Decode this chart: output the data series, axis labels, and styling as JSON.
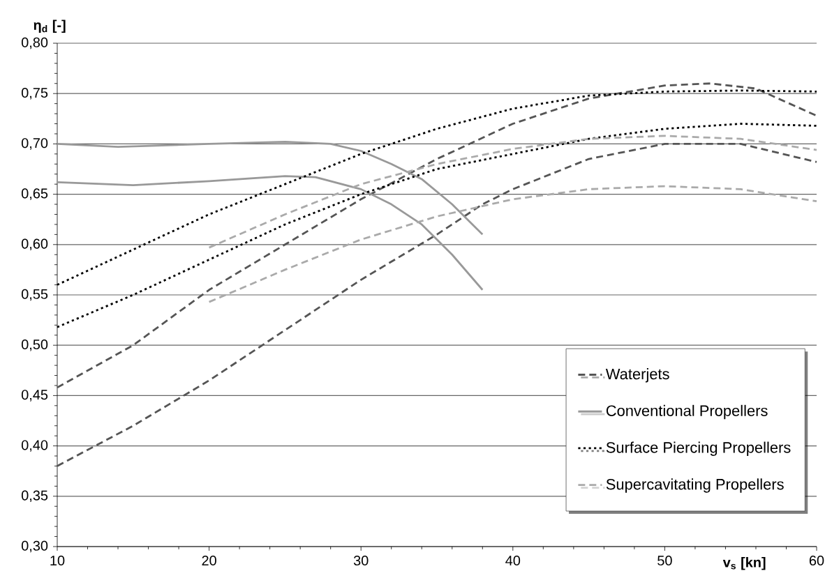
{
  "chart_data": {
    "type": "line",
    "xlabel": "v$_{s}$ [kn]",
    "ylabel": "η$_{d}$ [-]",
    "xlim": [
      10,
      60
    ],
    "xticks": [
      10,
      20,
      30,
      40,
      50,
      60
    ],
    "ylim": [
      0.3,
      0.8
    ],
    "yticks": [
      {
        "value": 0.3,
        "label": "0,30"
      },
      {
        "value": 0.35,
        "label": "0,35"
      },
      {
        "value": 0.4,
        "label": "0,40"
      },
      {
        "value": 0.45,
        "label": "0,45"
      },
      {
        "value": 0.5,
        "label": "0,50"
      },
      {
        "value": 0.55,
        "label": "0,55"
      },
      {
        "value": 0.6,
        "label": "0,60"
      },
      {
        "value": 0.65,
        "label": "0,65"
      },
      {
        "value": 0.7,
        "label": "0,70"
      },
      {
        "value": 0.75,
        "label": "0,75"
      },
      {
        "value": 0.8,
        "label": "0,80"
      }
    ],
    "grid": "y",
    "legend": "bottom right",
    "marker": "none",
    "series": [
      {
        "name": "Waterjets",
        "color": "#555555",
        "line_style": "dashed",
        "x": [
          10,
          15,
          20,
          25,
          30,
          35,
          40,
          45,
          50,
          53,
          56,
          60
        ],
        "values": [
          0.458,
          0.5,
          0.555,
          0.6,
          0.645,
          0.685,
          0.72,
          0.745,
          0.758,
          0.76,
          0.755,
          0.728
        ]
      },
      {
        "color": "#555555",
        "line_style": "dashed",
        "x": [
          10,
          15,
          20,
          25,
          30,
          35,
          38,
          40,
          45,
          50,
          55,
          60
        ],
        "values": [
          0.38,
          0.42,
          0.465,
          0.515,
          0.565,
          0.61,
          0.64,
          0.655,
          0.685,
          0.7,
          0.7,
          0.682
        ]
      },
      {
        "name": "Conventional Propellers",
        "color": "#999999",
        "line_style": "solid",
        "x": [
          10,
          14,
          20,
          25,
          28,
          30,
          32,
          34,
          36,
          38
        ],
        "values": [
          0.7,
          0.697,
          0.7,
          0.702,
          0.7,
          0.693,
          0.68,
          0.665,
          0.64,
          0.61
        ]
      },
      {
        "color": "#999999",
        "line_style": "solid",
        "x": [
          10,
          15,
          20,
          25,
          27,
          30,
          32,
          34,
          36,
          38
        ],
        "values": [
          0.662,
          0.659,
          0.663,
          0.668,
          0.667,
          0.655,
          0.64,
          0.62,
          0.59,
          0.555
        ]
      },
      {
        "name": "Surface Piercing Propellers",
        "color": "#000000",
        "line_style": "dotted",
        "x": [
          10,
          15,
          20,
          25,
          30,
          35,
          40,
          45,
          50,
          55,
          60
        ],
        "values": [
          0.56,
          0.595,
          0.63,
          0.66,
          0.69,
          0.715,
          0.735,
          0.748,
          0.752,
          0.753,
          0.752
        ]
      },
      {
        "color": "#000000",
        "line_style": "dotted",
        "x": [
          10,
          15,
          20,
          25,
          30,
          35,
          40,
          45,
          50,
          55,
          60
        ],
        "values": [
          0.518,
          0.55,
          0.585,
          0.62,
          0.65,
          0.675,
          0.69,
          0.705,
          0.715,
          0.72,
          0.718
        ]
      },
      {
        "name": "Supercavitating Propellers",
        "color": "#aaaaaa",
        "line_style": "dashed",
        "x": [
          20,
          25,
          30,
          35,
          40,
          45,
          50,
          55,
          60
        ],
        "values": [
          0.597,
          0.63,
          0.66,
          0.68,
          0.695,
          0.705,
          0.708,
          0.705,
          0.694
        ]
      },
      {
        "color": "#aaaaaa",
        "line_style": "dashed",
        "x": [
          20,
          25,
          30,
          35,
          40,
          45,
          50,
          55,
          60
        ],
        "values": [
          0.543,
          0.575,
          0.605,
          0.628,
          0.645,
          0.655,
          0.658,
          0.655,
          0.643
        ]
      }
    ]
  }
}
